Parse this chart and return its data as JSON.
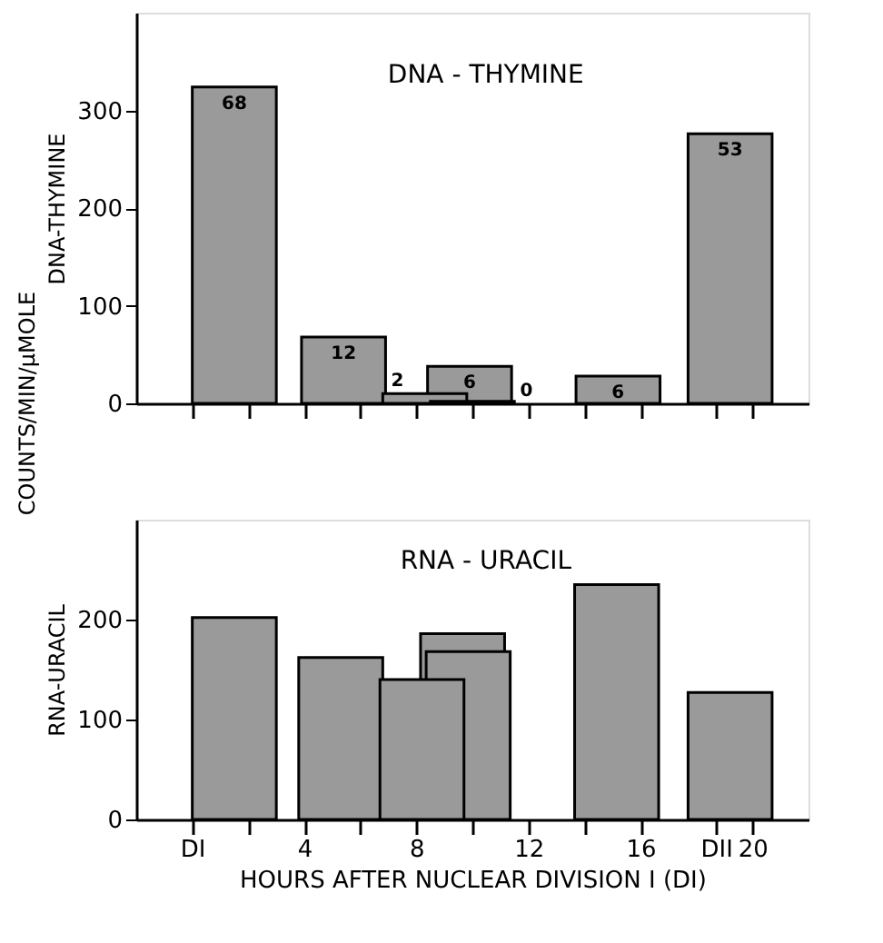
{
  "chart_data": [
    {
      "type": "bar",
      "title": "DNA - THYMINE",
      "ylabel": "DNA-THYMINE",
      "color": "#9a9a9a",
      "annotations": [
        "COUNTS/MIN/μMOLE",
        {
          "text": "68",
          "x": 1.5,
          "y": 324
        },
        {
          "text": "12",
          "x": 5.4,
          "y": 68
        },
        {
          "text": "2",
          "x": 8.3,
          "y": 10
        },
        {
          "text": "6",
          "x": 9.9,
          "y": 38
        },
        {
          "text": "0",
          "x": 10.0,
          "y": 2
        },
        {
          "text": "6",
          "x": 15.2,
          "y": 28
        },
        {
          "text": "53",
          "x": 19.2,
          "y": 276
        }
      ],
      "x": [
        1.5,
        5.4,
        8.3,
        9.9,
        10.0,
        15.2,
        19.2
      ],
      "values": [
        324,
        68,
        10,
        38,
        2,
        28,
        276
      ],
      "xlim": [
        -2,
        22
      ],
      "xticks": [
        {
          "value": 0,
          "label": null
        },
        {
          "value": 2,
          "label": null
        },
        {
          "value": 4,
          "label": null
        },
        {
          "value": 6,
          "label": null
        },
        {
          "value": 8,
          "label": null
        },
        {
          "value": 10,
          "label": null
        },
        {
          "value": 12,
          "label": null
        },
        {
          "value": 14,
          "label": null
        },
        {
          "value": 16,
          "label": null
        },
        {
          "value": 18.7,
          "label": null
        },
        {
          "value": 20,
          "label": null
        }
      ],
      "ylim": [
        0,
        400
      ],
      "yticks": [
        0,
        100,
        200,
        300
      ],
      "tick_labels": "y"
    },
    {
      "type": "bar",
      "title": "RNA - URACIL",
      "ylabel": "RNA-URACIL",
      "xlabel": "HOURS AFTER NUCLEAR DIVISION I (DI)",
      "color": "#9a9a9a",
      "x": [
        1.5,
        5.3,
        8.2,
        9.65,
        9.85,
        15.15,
        19.2
      ],
      "values": [
        202,
        162,
        140,
        186,
        168,
        235,
        127
      ],
      "xlim": [
        -2,
        22
      ],
      "xticks": [
        {
          "value": 0,
          "label": "DI"
        },
        {
          "value": 2,
          "label": null
        },
        4,
        {
          "value": 6,
          "label": null
        },
        8,
        {
          "value": 10,
          "label": null
        },
        12,
        {
          "value": 14,
          "label": null
        },
        16,
        {
          "value": 18.7,
          "label": "DII"
        },
        20
      ],
      "ylim": [
        0,
        300
      ],
      "yticks": [
        0,
        100,
        200
      ]
    }
  ]
}
